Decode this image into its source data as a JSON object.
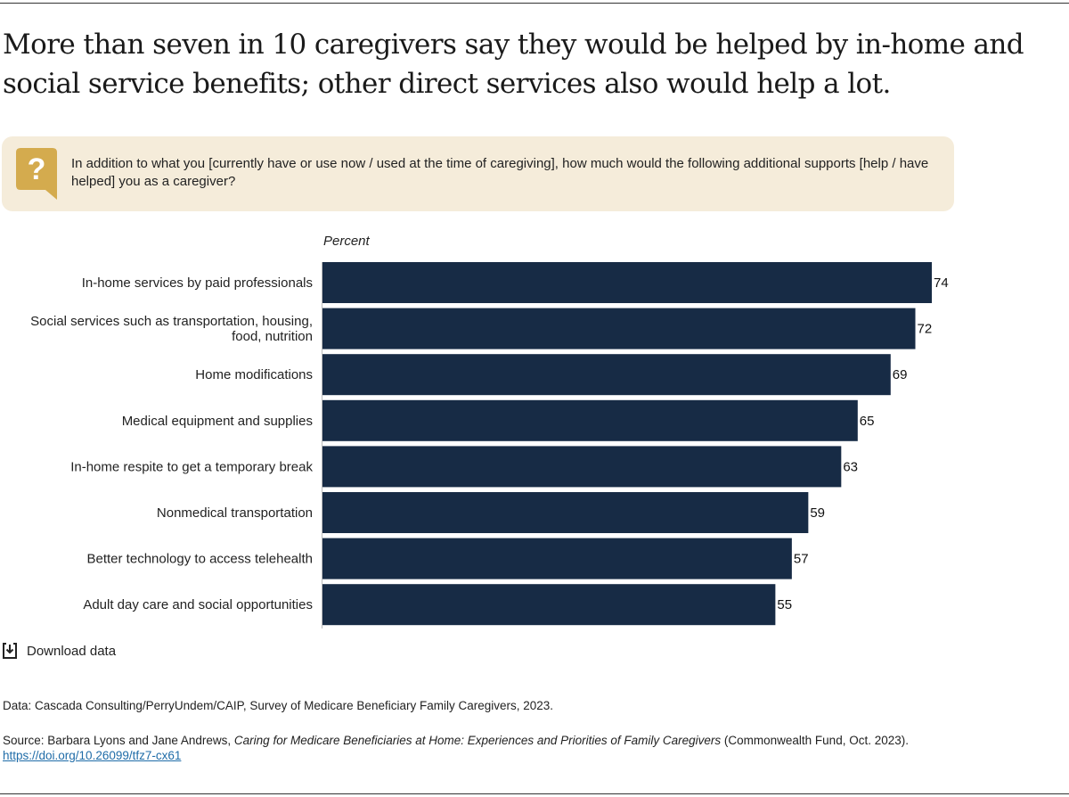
{
  "title": "More than seven in 10 caregivers say they would be helped by in-home and social service benefits; other direct services also would help a lot.",
  "question": "In addition to what you [currently have or use now / used at the time of caregiving], how much would the following additional supports [help / have helped] you as a caregiver?",
  "question_icon": "question-speech-bubble-icon",
  "download_label": "Download data",
  "data_note": "Data: Cascada Consulting/PerryUndem/CAIP, Survey of Medicare Beneficiary Family Caregivers, 2023.",
  "source": {
    "prefix": "Source: Barbara Lyons and Jane Andrews, ",
    "title_italic": "Caring for Medicare Beneficiaries at Home: Experiences and Priorities of Family Caregivers",
    "suffix": " (Commonwealth Fund, Oct. 2023).",
    "link": "https://doi.org/10.26099/tfz7-cx61"
  },
  "colors": {
    "bar": "#172b45",
    "box": "#f5ecda",
    "icon": "#d4ab4e",
    "link": "#1f6ca8"
  },
  "chart_data": {
    "type": "bar",
    "orientation": "horizontal",
    "ylabel": "Percent",
    "categories": [
      [
        "In-home services by paid professionals"
      ],
      [
        "Social services such as transportation, housing,",
        "food, nutrition"
      ],
      [
        "Home modifications"
      ],
      [
        "Medical equipment and supplies"
      ],
      [
        "In-home respite to get a temporary break"
      ],
      [
        "Nonmedical transportation"
      ],
      [
        "Better technology to access telehealth"
      ],
      [
        "Adult day care and social opportunities"
      ]
    ],
    "values": [
      74,
      72,
      69,
      65,
      63,
      59,
      57,
      55
    ],
    "xlim": [
      0,
      74
    ],
    "grid": false
  }
}
